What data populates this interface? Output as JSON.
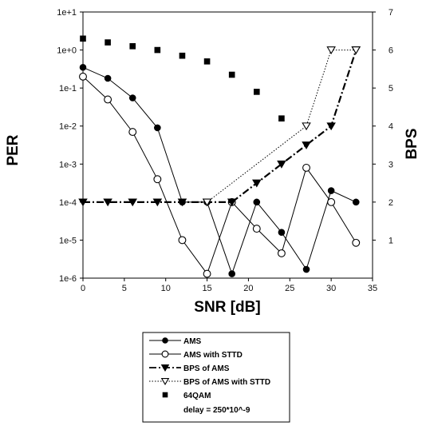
{
  "chart_data": {
    "type": "line",
    "xlabel": "SNR [dB]",
    "ylabel": "PER",
    "y2label": "BPS",
    "x_ticks": [
      "0",
      "5",
      "10",
      "15",
      "20",
      "25",
      "30",
      "35"
    ],
    "y_ticks": [
      "1e+1",
      "1e+0",
      "1e-1",
      "1e-2",
      "1e-3",
      "1e-4",
      "1e-5",
      "1e-6"
    ],
    "y2_ticks": [
      "1",
      "2",
      "3",
      "4",
      "5",
      "6",
      "7"
    ],
    "xlim": [
      0,
      35
    ],
    "ylim": [
      1e-06,
      10
    ],
    "yscale": "log",
    "y2lim": [
      0,
      7
    ],
    "grid": false,
    "legend_position": "below-plot",
    "series": [
      {
        "name": "AMS",
        "axis": "left",
        "line": "solid",
        "marker": "filled-circle",
        "x": [
          0,
          3,
          6,
          9,
          12,
          15,
          18,
          21,
          24,
          27,
          30,
          33
        ],
        "y": [
          0.35,
          0.18,
          0.055,
          0.009,
          0.0001,
          0.0001,
          1.3e-06,
          0.0001,
          1.6e-05,
          1.7e-06,
          0.0002,
          0.0001
        ]
      },
      {
        "name": "AMS with STTD",
        "axis": "left",
        "line": "solid",
        "marker": "open-circle",
        "x": [
          0,
          3,
          6,
          9,
          12,
          15,
          18,
          21,
          24,
          27,
          30,
          33
        ],
        "y": [
          0.2,
          0.05,
          0.007,
          0.0004,
          1e-05,
          1.3e-06,
          0.0001,
          2e-05,
          4.5e-06,
          0.0008,
          0.0001,
          8.5e-06
        ]
      },
      {
        "name": "BPS of AMS",
        "axis": "right",
        "line": "dash-dot",
        "marker": "filled-triangle-down",
        "x": [
          0,
          3,
          6,
          9,
          12,
          15,
          18,
          21,
          24,
          27,
          30,
          33
        ],
        "y": [
          2,
          2,
          2,
          2,
          2,
          2,
          2,
          2.5,
          3,
          3.5,
          4,
          6
        ]
      },
      {
        "name": "BPS of AMS with STTD",
        "axis": "right",
        "line": "dotted",
        "marker": "open-triangle-down",
        "x": [
          15,
          27,
          30,
          33
        ],
        "y": [
          2,
          4,
          6,
          6
        ]
      },
      {
        "name": "64QAM",
        "axis": "right",
        "line": "none",
        "marker": "filled-square",
        "x": [
          0,
          3,
          6,
          9,
          12,
          15,
          18,
          21,
          24
        ],
        "y": [
          6.3,
          6.2,
          6.1,
          6.0,
          5.85,
          5.7,
          5.35,
          4.9,
          4.2
        ]
      }
    ],
    "legend": {
      "entries": [
        "AMS",
        "AMS with STTD",
        "BPS of AMS",
        "BPS of AMS with STTD",
        "64QAM"
      ],
      "note": "delay = 250*10^-9"
    }
  }
}
